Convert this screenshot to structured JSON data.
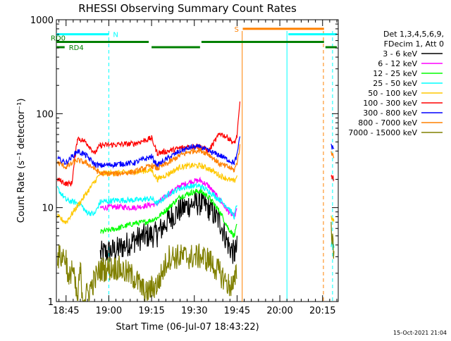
{
  "chart_data": {
    "type": "line",
    "title": "RHESSI Observing Summary Count Rates",
    "xlabel": "Start Time (06-Jul-07 18:43:22)",
    "ylabel": "Count Rate (s⁻¹ detector⁻¹)",
    "yscale": "log",
    "ylim": [
      1,
      1000
    ],
    "xlim_minutes": [
      -3.4,
      95.5
    ],
    "x_ticks": [
      {
        "label": "18:45",
        "min": 0
      },
      {
        "label": "19:00",
        "min": 15
      },
      {
        "label": "19:15",
        "min": 30
      },
      {
        "label": "19:30",
        "min": 45
      },
      {
        "label": "19:45",
        "min": 60
      },
      {
        "label": "20:00",
        "min": 75
      },
      {
        "label": "20:15",
        "min": 90
      }
    ],
    "y_ticks": [
      {
        "label": "1",
        "value": 1
      },
      {
        "label": "10",
        "value": 10
      },
      {
        "label": "100",
        "value": 100
      },
      {
        "label": "1000",
        "value": 1000
      }
    ],
    "legend": {
      "placement": "top-right",
      "header_lines": [
        "Det 1,3,4,5,6,9,",
        "FDecim 1, Att 0"
      ]
    },
    "series": [
      {
        "name": "3 - 6 keV",
        "color": "#000000",
        "points": [
          [
            12,
            3.2
          ],
          [
            18,
            3.6
          ],
          [
            24,
            4.5
          ],
          [
            28,
            5
          ],
          [
            32,
            5.2
          ],
          [
            36,
            7.5
          ],
          [
            40,
            9.5
          ],
          [
            44,
            11
          ],
          [
            47,
            11.2
          ],
          [
            50,
            10
          ],
          [
            54,
            7
          ],
          [
            57,
            4
          ],
          [
            59,
            3.2
          ],
          [
            60,
            3.7
          ]
        ]
      },
      {
        "name": "6 - 12 keV",
        "color": "#ff00ff",
        "points": [
          [
            12,
            10
          ],
          [
            18,
            10.2
          ],
          [
            24,
            10
          ],
          [
            28,
            10.5
          ],
          [
            32,
            11
          ],
          [
            36,
            14
          ],
          [
            40,
            17
          ],
          [
            44,
            19
          ],
          [
            47,
            19.5
          ],
          [
            50,
            17
          ],
          [
            54,
            12
          ],
          [
            57,
            9
          ],
          [
            59,
            8
          ],
          [
            60,
            9.5
          ]
        ]
      },
      {
        "name": "12 - 25 keV",
        "color": "#00ff00",
        "points": [
          [
            12,
            5.5
          ],
          [
            18,
            6
          ],
          [
            24,
            6.8
          ],
          [
            28,
            7
          ],
          [
            32,
            7.8
          ],
          [
            36,
            10
          ],
          [
            40,
            13
          ],
          [
            44,
            14.5
          ],
          [
            47,
            15
          ],
          [
            50,
            13
          ],
          [
            54,
            9
          ],
          [
            57,
            6
          ],
          [
            59,
            5
          ],
          [
            60,
            6.5
          ]
        ]
      },
      {
        "name": "25 - 50 keV",
        "color": "#00ffff",
        "points": [
          [
            -3,
            16
          ],
          [
            0,
            12
          ],
          [
            5,
            11
          ],
          [
            7,
            9
          ],
          [
            10,
            8.5
          ],
          [
            12,
            11.5
          ],
          [
            18,
            12
          ],
          [
            24,
            12
          ],
          [
            30,
            12.5
          ],
          [
            32,
            11
          ],
          [
            36,
            14
          ],
          [
            40,
            16
          ],
          [
            44,
            17
          ],
          [
            47,
            17
          ],
          [
            50,
            15
          ],
          [
            54,
            12
          ],
          [
            57,
            10
          ],
          [
            59,
            8
          ],
          [
            60,
            11
          ],
          [
            93,
            4
          ],
          [
            94,
            3.8
          ]
        ]
      },
      {
        "name": "50 - 100 keV",
        "color": "#ffc800",
        "points": [
          [
            -3,
            8
          ],
          [
            0,
            7
          ],
          [
            12,
            23
          ],
          [
            18,
            23.5
          ],
          [
            24,
            24
          ],
          [
            30,
            25
          ],
          [
            32,
            20
          ],
          [
            36,
            23
          ],
          [
            40,
            27
          ],
          [
            44,
            28
          ],
          [
            47,
            28
          ],
          [
            50,
            26
          ],
          [
            54,
            22
          ],
          [
            57,
            20
          ],
          [
            59,
            19
          ],
          [
            60,
            22
          ],
          [
            93,
            8
          ],
          [
            94,
            7
          ]
        ]
      },
      {
        "name": "100 - 300 keV",
        "color": "#ff0000",
        "points": [
          [
            -3,
            20
          ],
          [
            0,
            18
          ],
          [
            2,
            18
          ],
          [
            4,
            55
          ],
          [
            7,
            50
          ],
          [
            10,
            38
          ],
          [
            12,
            46
          ],
          [
            18,
            47
          ],
          [
            24,
            48
          ],
          [
            30,
            55
          ],
          [
            32,
            38
          ],
          [
            36,
            40
          ],
          [
            40,
            43
          ],
          [
            44,
            45
          ],
          [
            47,
            45
          ],
          [
            50,
            40
          ],
          [
            54,
            62
          ],
          [
            57,
            55
          ],
          [
            59,
            48
          ],
          [
            60,
            58
          ],
          [
            61,
            130
          ],
          [
            93,
            22
          ],
          [
            94,
            20
          ]
        ]
      },
      {
        "name": "300 - 800 keV",
        "color": "#0000ff",
        "points": [
          [
            -3,
            33
          ],
          [
            0,
            30
          ],
          [
            4,
            40
          ],
          [
            7,
            36
          ],
          [
            10,
            29
          ],
          [
            12,
            28
          ],
          [
            18,
            29
          ],
          [
            24,
            30
          ],
          [
            30,
            35
          ],
          [
            32,
            28
          ],
          [
            36,
            34
          ],
          [
            40,
            40
          ],
          [
            44,
            44
          ],
          [
            47,
            44
          ],
          [
            50,
            40
          ],
          [
            54,
            36
          ],
          [
            57,
            32
          ],
          [
            59,
            30
          ],
          [
            60,
            36
          ],
          [
            61,
            60
          ],
          [
            93,
            45
          ],
          [
            94,
            43
          ]
        ]
      },
      {
        "name": "800 - 7000 keV",
        "color": "#ff8000",
        "points": [
          [
            -3,
            30
          ],
          [
            0,
            27
          ],
          [
            4,
            32
          ],
          [
            7,
            30
          ],
          [
            10,
            26
          ],
          [
            12,
            23
          ],
          [
            18,
            23
          ],
          [
            24,
            24
          ],
          [
            30,
            28
          ],
          [
            32,
            26
          ],
          [
            36,
            30
          ],
          [
            40,
            36
          ],
          [
            44,
            40
          ],
          [
            47,
            41
          ],
          [
            50,
            37
          ],
          [
            54,
            29
          ],
          [
            57,
            27
          ],
          [
            59,
            25
          ],
          [
            60,
            30
          ],
          [
            61,
            45
          ],
          [
            93,
            38
          ],
          [
            94,
            36
          ]
        ]
      },
      {
        "name": "7000 - 15000 keV",
        "color": "#808000",
        "points": [
          [
            -3,
            3
          ],
          [
            0,
            3
          ],
          [
            1,
            1.5
          ],
          [
            2,
            2.5
          ],
          [
            4,
            1
          ],
          [
            5,
            2.2
          ],
          [
            6,
            1
          ],
          [
            12,
            2.2
          ],
          [
            18,
            2.3
          ],
          [
            24,
            1.8
          ],
          [
            28,
            1.2
          ],
          [
            30,
            1.4
          ],
          [
            32,
            1.5
          ],
          [
            36,
            3
          ],
          [
            40,
            3
          ],
          [
            44,
            3
          ],
          [
            47,
            3
          ],
          [
            50,
            2.8
          ],
          [
            54,
            2
          ],
          [
            57,
            1.5
          ],
          [
            59,
            1.5
          ],
          [
            60,
            2.2
          ],
          [
            93,
            6
          ],
          [
            94,
            3.5
          ]
        ]
      }
    ],
    "flag_bars": [
      {
        "label": "N",
        "color": "#00ffff",
        "y": 700,
        "ranges": [
          [
            -3.4,
            15
          ]
        ]
      },
      {
        "label": "",
        "color": "#00ffff",
        "y": 700,
        "ranges": [
          [
            78,
            95
          ]
        ]
      },
      {
        "label": "S",
        "color": "#ff8000",
        "y": 800,
        "ranges": [
          [
            62,
            90.5
          ]
        ]
      },
      {
        "label": "RD0",
        "color": "#008000",
        "y": 580,
        "ranges": [
          [
            -3.4,
            29
          ],
          [
            47.5,
            90.5
          ]
        ]
      },
      {
        "label": "RD4",
        "color": "#008000",
        "y": 510,
        "ranges": [
          [
            -3.4,
            -0.5
          ],
          [
            30,
            47
          ]
        ]
      },
      {
        "label": "",
        "color": "#008000",
        "y": 510,
        "ranges": [
          [
            91,
            95
          ]
        ]
      }
    ],
    "vlines": [
      {
        "min": 15,
        "color": "#00ffff",
        "dashed": true
      },
      {
        "min": 61.8,
        "color": "#ff8000",
        "dashed": false
      },
      {
        "min": 77.5,
        "color": "#00ffff",
        "dashed": false
      },
      {
        "min": 90.3,
        "color": "#ff8000",
        "dashed": true
      },
      {
        "min": 93.5,
        "color": "#00ffff",
        "dashed": true
      }
    ],
    "gaps": [
      [
        61.8,
        92.6
      ]
    ]
  },
  "timestamp": "15-Oct-2021 21:04"
}
